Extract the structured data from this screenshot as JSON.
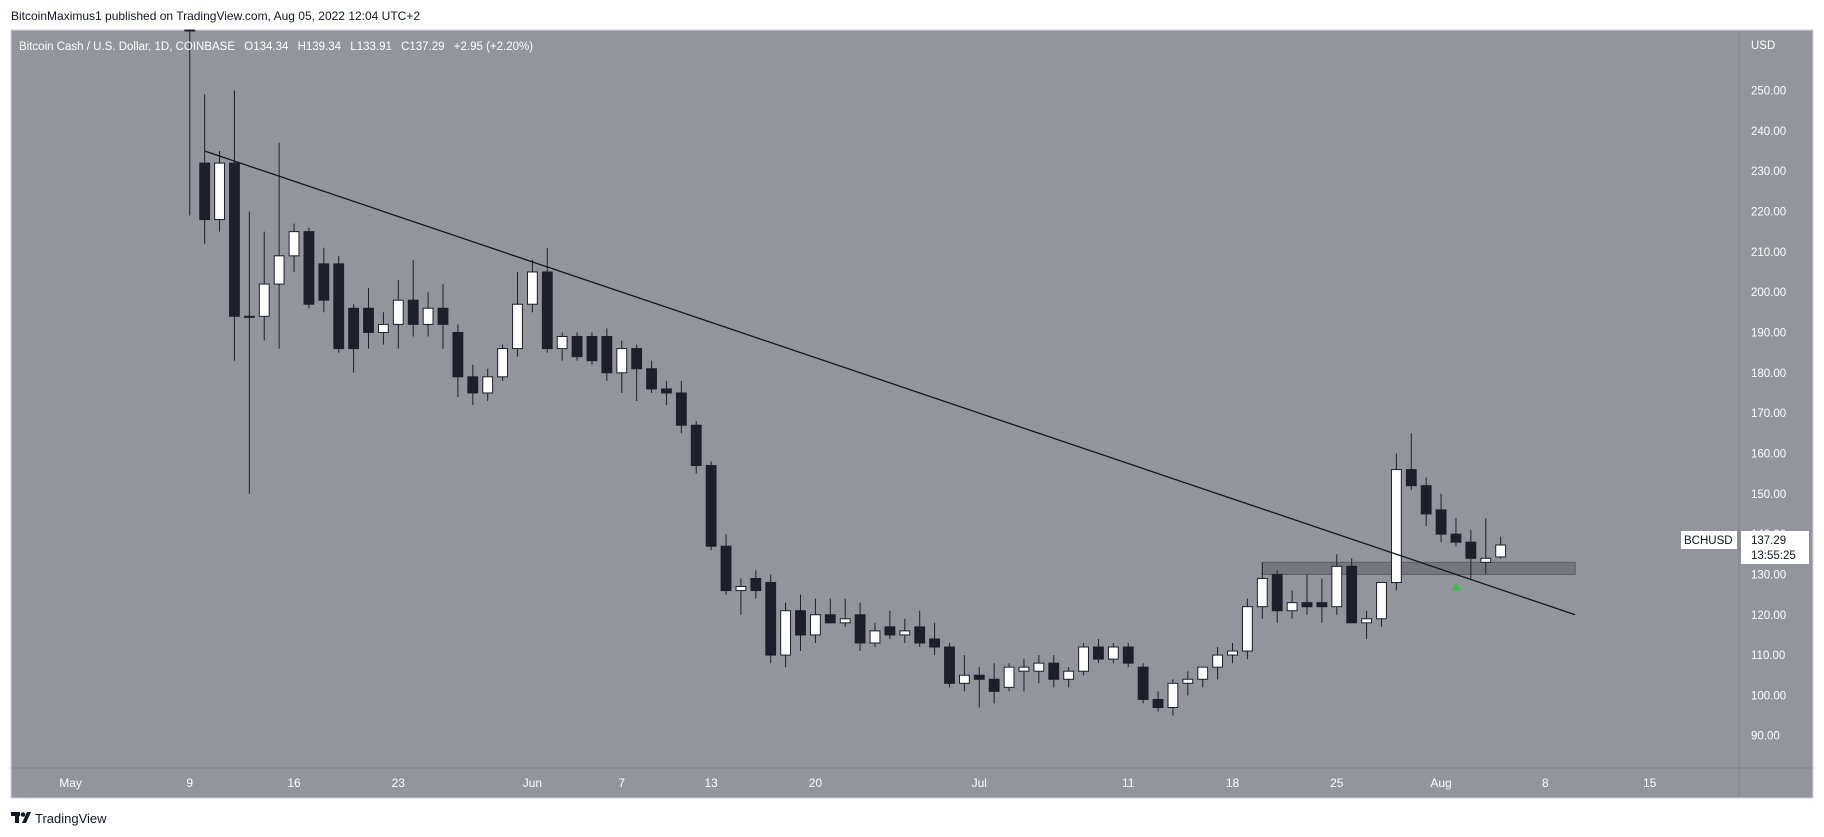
{
  "header": {
    "publisher_line": "BitcoinMaximus1 published on TradingView.com, Aug 05, 2022 12:04 UTC+2"
  },
  "legend": {
    "symbol_line": "Bitcoin Cash / U.S. Dollar, 1D, COINBASE",
    "o_label": "O",
    "o_value": "134.34",
    "h_label": "H",
    "h_value": "139.34",
    "l_label": "L",
    "l_value": "133.91",
    "c_label": "C",
    "c_value": "137.29",
    "change": "+2.95 (+2.20%)"
  },
  "price_tag": {
    "ticker": "BCHUSD",
    "price": "137.29",
    "countdown": "13:55:25"
  },
  "footer": {
    "brand": "TradingView"
  },
  "colors": {
    "background": "#ffffff",
    "plot_bg": "#93959d",
    "up_candle": "#ffffff",
    "down_candle": "#1e1f2a",
    "wick": "#1e1f2a",
    "trendline": "#131722",
    "support_zone": "#6b6e76",
    "marker": "#3cbf4a",
    "axis_text": "#ffffff",
    "border": "#cfd2da"
  },
  "chart_data": {
    "type": "candlestick",
    "title": "Bitcoin Cash / U.S. Dollar, 1D, COINBASE",
    "y_axis_unit": "USD",
    "ylim": [
      82,
      265
    ],
    "y_ticks": [
      250,
      240,
      230,
      220,
      210,
      200,
      190,
      180,
      170,
      160,
      150,
      140,
      130,
      120,
      110,
      100,
      90
    ],
    "y_tick_labels": [
      "250.00",
      "240.00",
      "230.00",
      "220.00",
      "210.00",
      "200.00",
      "190.00",
      "180.00",
      "170.00",
      "160.00",
      "150.00",
      "140.00",
      "130.00",
      "120.00",
      "110.00",
      "100.00",
      "90.00"
    ],
    "x_ticks": [
      {
        "label": "May",
        "date": "2022-05-01"
      },
      {
        "label": "9",
        "date": "2022-05-09"
      },
      {
        "label": "16",
        "date": "2022-05-16"
      },
      {
        "label": "23",
        "date": "2022-05-23"
      },
      {
        "label": "Jun",
        "date": "2022-06-01"
      },
      {
        "label": "7",
        "date": "2022-06-07"
      },
      {
        "label": "13",
        "date": "2022-06-13"
      },
      {
        "label": "20",
        "date": "2022-06-20"
      },
      {
        "label": "Jul",
        "date": "2022-07-01"
      },
      {
        "label": "11",
        "date": "2022-07-11"
      },
      {
        "label": "18",
        "date": "2022-07-18"
      },
      {
        "label": "25",
        "date": "2022-07-25"
      },
      {
        "label": "Aug",
        "date": "2022-08-01"
      },
      {
        "label": "8",
        "date": "2022-08-08"
      },
      {
        "label": "15",
        "date": "2022-08-15"
      }
    ],
    "xlim": [
      "2022-04-27",
      "2022-08-21"
    ],
    "grid": false,
    "trendline": {
      "x1": "2022-05-10",
      "y1": 235,
      "x2": "2022-08-10",
      "y2": 120
    },
    "support_zone": {
      "x1": "2022-07-20",
      "x2": "2022-08-10",
      "y_low": 130,
      "y_high": 133
    },
    "marker": {
      "date": "2022-08-02",
      "value": 127,
      "shape": "triangle-up"
    },
    "candles": [
      {
        "date": "2022-05-09",
        "o": 273,
        "h": 276,
        "l": 219,
        "c": 265
      },
      {
        "date": "2022-05-10",
        "o": 232,
        "h": 249,
        "l": 212,
        "c": 218
      },
      {
        "date": "2022-05-11",
        "o": 218,
        "h": 235,
        "l": 215,
        "c": 232
      },
      {
        "date": "2022-05-12",
        "o": 232,
        "h": 250,
        "l": 183,
        "c": 194
      },
      {
        "date": "2022-05-13",
        "o": 194,
        "h": 220,
        "l": 150,
        "c": 194
      },
      {
        "date": "2022-05-14",
        "o": 194,
        "h": 215,
        "l": 188,
        "c": 202
      },
      {
        "date": "2022-05-15",
        "o": 202,
        "h": 237,
        "l": 186,
        "c": 209
      },
      {
        "date": "2022-05-16",
        "o": 209,
        "h": 217,
        "l": 205,
        "c": 215
      },
      {
        "date": "2022-05-17",
        "o": 215,
        "h": 216,
        "l": 196,
        "c": 197
      },
      {
        "date": "2022-05-18",
        "o": 207,
        "h": 211,
        "l": 195,
        "c": 198
      },
      {
        "date": "2022-05-19",
        "o": 207,
        "h": 209,
        "l": 185,
        "c": 186
      },
      {
        "date": "2022-05-20",
        "o": 196,
        "h": 197,
        "l": 180,
        "c": 186
      },
      {
        "date": "2022-05-21",
        "o": 196,
        "h": 201,
        "l": 186,
        "c": 190
      },
      {
        "date": "2022-05-22",
        "o": 190,
        "h": 195,
        "l": 187,
        "c": 192
      },
      {
        "date": "2022-05-23",
        "o": 192,
        "h": 203,
        "l": 186,
        "c": 198
      },
      {
        "date": "2022-05-24",
        "o": 198,
        "h": 208,
        "l": 189,
        "c": 192
      },
      {
        "date": "2022-05-25",
        "o": 192,
        "h": 200,
        "l": 189,
        "c": 196
      },
      {
        "date": "2022-05-26",
        "o": 196,
        "h": 202,
        "l": 186,
        "c": 192
      },
      {
        "date": "2022-05-27",
        "o": 190,
        "h": 192,
        "l": 174,
        "c": 179
      },
      {
        "date": "2022-05-28",
        "o": 179,
        "h": 182,
        "l": 172,
        "c": 175
      },
      {
        "date": "2022-05-29",
        "o": 175,
        "h": 181,
        "l": 173,
        "c": 179
      },
      {
        "date": "2022-05-30",
        "o": 179,
        "h": 187,
        "l": 178,
        "c": 186
      },
      {
        "date": "2022-05-31",
        "o": 186,
        "h": 205,
        "l": 184,
        "c": 197
      },
      {
        "date": "2022-06-01",
        "o": 197,
        "h": 208,
        "l": 195,
        "c": 205
      },
      {
        "date": "2022-06-02",
        "o": 205,
        "h": 211,
        "l": 185,
        "c": 186
      },
      {
        "date": "2022-06-03",
        "o": 186,
        "h": 190,
        "l": 183,
        "c": 189
      },
      {
        "date": "2022-06-04",
        "o": 189,
        "h": 190,
        "l": 183,
        "c": 184
      },
      {
        "date": "2022-06-05",
        "o": 189,
        "h": 190,
        "l": 182,
        "c": 183
      },
      {
        "date": "2022-06-06",
        "o": 189,
        "h": 191,
        "l": 178,
        "c": 180
      },
      {
        "date": "2022-06-07",
        "o": 180,
        "h": 188,
        "l": 175,
        "c": 186
      },
      {
        "date": "2022-06-08",
        "o": 186,
        "h": 187,
        "l": 173,
        "c": 181
      },
      {
        "date": "2022-06-09",
        "o": 181,
        "h": 183,
        "l": 175,
        "c": 176
      },
      {
        "date": "2022-06-10",
        "o": 176,
        "h": 178,
        "l": 172,
        "c": 175
      },
      {
        "date": "2022-06-11",
        "o": 175,
        "h": 178,
        "l": 165,
        "c": 167
      },
      {
        "date": "2022-06-12",
        "o": 167,
        "h": 168,
        "l": 155,
        "c": 157
      },
      {
        "date": "2022-06-13",
        "o": 157,
        "h": 158,
        "l": 136,
        "c": 137
      },
      {
        "date": "2022-06-14",
        "o": 137,
        "h": 140,
        "l": 125,
        "c": 126
      },
      {
        "date": "2022-06-15",
        "o": 126,
        "h": 129,
        "l": 120,
        "c": 127
      },
      {
        "date": "2022-06-16",
        "o": 129,
        "h": 131,
        "l": 124,
        "c": 126
      },
      {
        "date": "2022-06-17",
        "o": 128,
        "h": 130,
        "l": 108,
        "c": 110
      },
      {
        "date": "2022-06-18",
        "o": 110,
        "h": 123,
        "l": 107,
        "c": 121
      },
      {
        "date": "2022-06-19",
        "o": 121,
        "h": 125,
        "l": 111,
        "c": 115
      },
      {
        "date": "2022-06-20",
        "o": 115,
        "h": 124,
        "l": 113,
        "c": 120
      },
      {
        "date": "2022-06-21",
        "o": 120,
        "h": 124,
        "l": 118,
        "c": 118
      },
      {
        "date": "2022-06-22",
        "o": 118,
        "h": 124,
        "l": 117,
        "c": 119
      },
      {
        "date": "2022-06-23",
        "o": 120,
        "h": 123,
        "l": 111,
        "c": 113
      },
      {
        "date": "2022-06-24",
        "o": 113,
        "h": 118,
        "l": 112,
        "c": 116
      },
      {
        "date": "2022-06-25",
        "o": 117,
        "h": 121,
        "l": 114,
        "c": 115
      },
      {
        "date": "2022-06-26",
        "o": 115,
        "h": 119,
        "l": 113,
        "c": 116
      },
      {
        "date": "2022-06-27",
        "o": 117,
        "h": 121,
        "l": 112,
        "c": 113
      },
      {
        "date": "2022-06-28",
        "o": 114,
        "h": 118,
        "l": 110,
        "c": 112
      },
      {
        "date": "2022-06-29",
        "o": 112,
        "h": 113,
        "l": 102,
        "c": 103
      },
      {
        "date": "2022-06-30",
        "o": 103,
        "h": 110,
        "l": 101,
        "c": 105
      },
      {
        "date": "2022-07-01",
        "o": 105,
        "h": 107,
        "l": 97,
        "c": 104
      },
      {
        "date": "2022-07-02",
        "o": 104,
        "h": 108,
        "l": 98,
        "c": 101
      },
      {
        "date": "2022-07-03",
        "o": 102,
        "h": 108,
        "l": 101,
        "c": 107
      },
      {
        "date": "2022-07-04",
        "o": 106,
        "h": 109,
        "l": 101,
        "c": 107
      },
      {
        "date": "2022-07-05",
        "o": 106,
        "h": 110,
        "l": 103,
        "c": 108
      },
      {
        "date": "2022-07-06",
        "o": 108,
        "h": 110,
        "l": 102,
        "c": 104
      },
      {
        "date": "2022-07-07",
        "o": 104,
        "h": 107,
        "l": 102,
        "c": 106
      },
      {
        "date": "2022-07-08",
        "o": 106,
        "h": 113,
        "l": 105,
        "c": 112
      },
      {
        "date": "2022-07-09",
        "o": 112,
        "h": 114,
        "l": 108,
        "c": 109
      },
      {
        "date": "2022-07-10",
        "o": 109,
        "h": 113,
        "l": 108,
        "c": 112
      },
      {
        "date": "2022-07-11",
        "o": 112,
        "h": 113,
        "l": 107,
        "c": 108
      },
      {
        "date": "2022-07-12",
        "o": 107,
        "h": 108,
        "l": 98,
        "c": 99
      },
      {
        "date": "2022-07-13",
        "o": 99,
        "h": 101,
        "l": 96,
        "c": 97
      },
      {
        "date": "2022-07-14",
        "o": 97,
        "h": 104,
        "l": 95,
        "c": 103
      },
      {
        "date": "2022-07-15",
        "o": 103,
        "h": 106,
        "l": 100,
        "c": 104
      },
      {
        "date": "2022-07-16",
        "o": 104,
        "h": 107,
        "l": 102,
        "c": 107
      },
      {
        "date": "2022-07-17",
        "o": 107,
        "h": 112,
        "l": 104,
        "c": 110
      },
      {
        "date": "2022-07-18",
        "o": 110,
        "h": 113,
        "l": 108,
        "c": 111
      },
      {
        "date": "2022-07-19",
        "o": 111,
        "h": 124,
        "l": 109,
        "c": 122
      },
      {
        "date": "2022-07-20",
        "o": 122,
        "h": 133,
        "l": 119,
        "c": 129
      },
      {
        "date": "2022-07-21",
        "o": 130,
        "h": 131,
        "l": 118,
        "c": 121
      },
      {
        "date": "2022-07-22",
        "o": 121,
        "h": 126,
        "l": 119,
        "c": 123
      },
      {
        "date": "2022-07-23",
        "o": 123,
        "h": 130,
        "l": 120,
        "c": 122
      },
      {
        "date": "2022-07-24",
        "o": 123,
        "h": 129,
        "l": 118,
        "c": 122
      },
      {
        "date": "2022-07-25",
        "o": 122,
        "h": 135,
        "l": 120,
        "c": 132
      },
      {
        "date": "2022-07-26",
        "o": 132,
        "h": 134,
        "l": 118,
        "c": 118
      },
      {
        "date": "2022-07-27",
        "o": 118,
        "h": 121,
        "l": 114,
        "c": 119
      },
      {
        "date": "2022-07-28",
        "o": 119,
        "h": 128,
        "l": 117,
        "c": 128
      },
      {
        "date": "2022-07-29",
        "o": 128,
        "h": 160,
        "l": 126,
        "c": 156
      },
      {
        "date": "2022-07-30",
        "o": 156,
        "h": 165,
        "l": 151,
        "c": 152
      },
      {
        "date": "2022-07-31",
        "o": 152,
        "h": 154,
        "l": 142,
        "c": 145
      },
      {
        "date": "2022-08-01",
        "o": 146,
        "h": 150,
        "l": 138,
        "c": 140
      },
      {
        "date": "2022-08-02",
        "o": 140,
        "h": 144,
        "l": 137,
        "c": 138
      },
      {
        "date": "2022-08-03",
        "o": 138,
        "h": 141,
        "l": 129,
        "c": 134
      },
      {
        "date": "2022-08-04",
        "o": 133,
        "h": 144,
        "l": 130,
        "c": 134
      },
      {
        "date": "2022-08-05",
        "o": 134.34,
        "h": 139.34,
        "l": 133.91,
        "c": 137.29
      }
    ]
  }
}
